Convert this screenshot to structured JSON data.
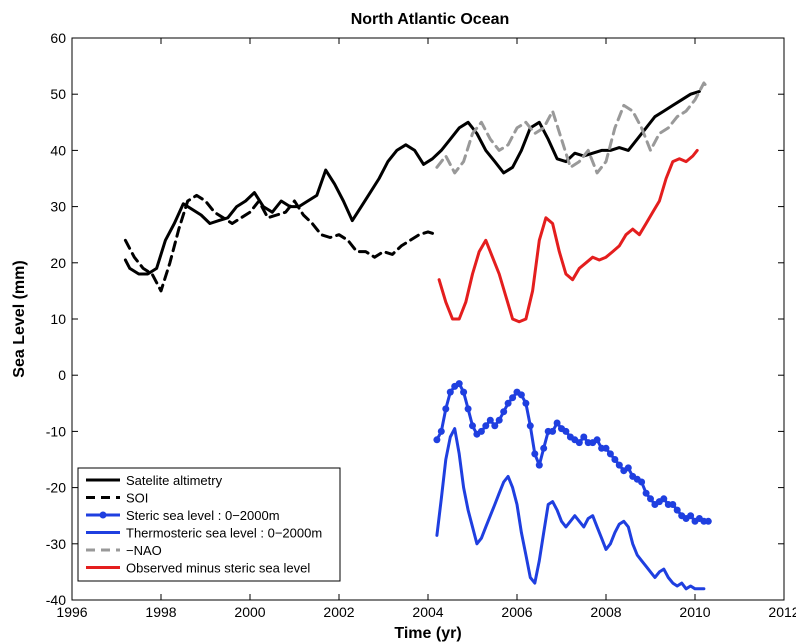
{
  "chart_data": {
    "type": "line",
    "title": "North Atlantic Ocean",
    "xlabel": "Time (yr)",
    "ylabel": "Sea Level (mm)",
    "xlim": [
      1996,
      2012
    ],
    "ylim": [
      -40,
      60
    ],
    "xticks": [
      1996,
      1998,
      2000,
      2002,
      2004,
      2006,
      2008,
      2010,
      2012
    ],
    "yticks": [
      -40,
      -30,
      -20,
      -10,
      0,
      10,
      20,
      30,
      40,
      50,
      60
    ],
    "grid": false,
    "legend_position": "bottom-left",
    "series": [
      {
        "name": "Satelite altimetry",
        "color": "#000000",
        "dash": "solid",
        "marker": "none",
        "x": [
          1997.2,
          1997.3,
          1997.5,
          1997.7,
          1997.9,
          1998.1,
          1998.3,
          1998.5,
          1998.7,
          1998.9,
          1999.1,
          1999.3,
          1999.5,
          1999.7,
          1999.9,
          2000.1,
          2000.3,
          2000.5,
          2000.7,
          2000.9,
          2001.1,
          2001.3,
          2001.5,
          2001.7,
          2001.9,
          2002.1,
          2002.3,
          2002.5,
          2002.7,
          2002.9,
          2003.1,
          2003.3,
          2003.5,
          2003.7,
          2003.9,
          2004.1,
          2004.3,
          2004.5,
          2004.7,
          2004.9,
          2005.1,
          2005.3,
          2005.5,
          2005.7,
          2005.9,
          2006.1,
          2006.3,
          2006.5,
          2006.7,
          2006.9,
          2007.1,
          2007.3,
          2007.5,
          2007.7,
          2007.9,
          2008.1,
          2008.3,
          2008.5,
          2008.7,
          2008.9,
          2009.1,
          2009.3,
          2009.5,
          2009.7,
          2009.9,
          2010.1
        ],
        "y": [
          20.5,
          19,
          18,
          18,
          19,
          24,
          27,
          30.5,
          29.5,
          28.5,
          27,
          27.5,
          28,
          30,
          31,
          32.5,
          30,
          29,
          31,
          30,
          30,
          31,
          32,
          36.5,
          34,
          31,
          27.5,
          30,
          32.5,
          35,
          38,
          40,
          41,
          40,
          37.5,
          38.5,
          40,
          42,
          44,
          45,
          43,
          40,
          38,
          36,
          37,
          40,
          44,
          45,
          42,
          38.5,
          38,
          39.5,
          39,
          39.5,
          40,
          40,
          40.5,
          40,
          42,
          44,
          46,
          47,
          48,
          49,
          50,
          50.5
        ]
      },
      {
        "name": "SOI",
        "color": "#000000",
        "dash": "dashed",
        "marker": "none",
        "x": [
          1997.2,
          1997.4,
          1997.6,
          1997.8,
          1998.0,
          1998.2,
          1998.4,
          1998.6,
          1998.8,
          1999.0,
          1999.2,
          1999.4,
          1999.6,
          1999.8,
          2000.0,
          2000.2,
          2000.4,
          2000.6,
          2000.8,
          2001.0,
          2001.2,
          2001.4,
          2001.6,
          2001.8,
          2002.0,
          2002.2,
          2002.4,
          2002.6,
          2002.8,
          2003.0,
          2003.2,
          2003.4,
          2003.6,
          2003.8,
          2004.0,
          2004.2
        ],
        "y": [
          24,
          21,
          19,
          18,
          15,
          20,
          26,
          31,
          32,
          31,
          29,
          28,
          27,
          28,
          29,
          31,
          28,
          28.5,
          29,
          31,
          28.5,
          27,
          25,
          24.5,
          25,
          24,
          22,
          22,
          21,
          22,
          21.5,
          23,
          24,
          25,
          25.5,
          25
        ]
      },
      {
        "name": "−NAO",
        "color": "#999999",
        "dash": "dashed",
        "marker": "none",
        "x": [
          2004.2,
          2004.4,
          2004.6,
          2004.8,
          2005.0,
          2005.2,
          2005.4,
          2005.6,
          2005.8,
          2006.0,
          2006.2,
          2006.4,
          2006.6,
          2006.8,
          2007.0,
          2007.2,
          2007.4,
          2007.6,
          2007.8,
          2008.0,
          2008.2,
          2008.4,
          2008.6,
          2008.8,
          2009.0,
          2009.2,
          2009.4,
          2009.6,
          2009.8,
          2010.0,
          2010.2,
          2010.3
        ],
        "y": [
          37,
          39,
          36,
          38,
          43,
          45,
          42,
          40,
          41,
          44,
          45,
          43,
          44,
          47,
          42,
          37,
          38,
          40,
          36,
          38,
          44,
          48,
          47,
          44,
          40,
          43,
          44,
          46,
          47,
          49,
          52,
          51
        ]
      },
      {
        "name": "Observed minus steric sea level",
        "color": "#e41e1e",
        "dash": "solid",
        "marker": "none",
        "x": [
          2004.25,
          2004.4,
          2004.55,
          2004.7,
          2004.85,
          2005.0,
          2005.15,
          2005.3,
          2005.45,
          2005.6,
          2005.75,
          2005.9,
          2006.05,
          2006.2,
          2006.35,
          2006.5,
          2006.65,
          2006.8,
          2006.95,
          2007.1,
          2007.25,
          2007.4,
          2007.55,
          2007.7,
          2007.85,
          2008.0,
          2008.15,
          2008.3,
          2008.45,
          2008.6,
          2008.75,
          2008.9,
          2009.05,
          2009.2,
          2009.35,
          2009.5,
          2009.65,
          2009.8,
          2009.95,
          2010.05
        ],
        "y": [
          17,
          13,
          10,
          10,
          13,
          18,
          22,
          24,
          21,
          18,
          14,
          10,
          9.5,
          10,
          15,
          24,
          28,
          27,
          22,
          18,
          17,
          19,
          20,
          21,
          20.5,
          21,
          22,
          23,
          25,
          26,
          25,
          27,
          29,
          31,
          35,
          38,
          38.5,
          38,
          39,
          40
        ]
      },
      {
        "name": "Steric sea level : 0−2000m",
        "color": "#1f3fe0",
        "dash": "solid",
        "marker": "circle",
        "x": [
          2004.2,
          2004.3,
          2004.4,
          2004.5,
          2004.6,
          2004.7,
          2004.8,
          2004.9,
          2005.0,
          2005.1,
          2005.2,
          2005.3,
          2005.4,
          2005.5,
          2005.6,
          2005.7,
          2005.8,
          2005.9,
          2006.0,
          2006.1,
          2006.2,
          2006.3,
          2006.4,
          2006.5,
          2006.6,
          2006.7,
          2006.8,
          2006.9,
          2007.0,
          2007.1,
          2007.2,
          2007.3,
          2007.4,
          2007.5,
          2007.6,
          2007.7,
          2007.8,
          2007.9,
          2008.0,
          2008.1,
          2008.2,
          2008.3,
          2008.4,
          2008.5,
          2008.6,
          2008.7,
          2008.8,
          2008.9,
          2009.0,
          2009.1,
          2009.2,
          2009.3,
          2009.4,
          2009.5,
          2009.6,
          2009.7,
          2009.8,
          2009.9,
          2010.0,
          2010.1,
          2010.2,
          2010.3
        ],
        "y": [
          -11.5,
          -10,
          -6,
          -3,
          -2,
          -1.5,
          -3,
          -6,
          -9,
          -10.5,
          -10,
          -9,
          -8,
          -9,
          -8,
          -6.5,
          -5,
          -4,
          -3,
          -3.5,
          -5,
          -9,
          -14,
          -16,
          -13,
          -10,
          -10,
          -8.5,
          -9.5,
          -10,
          -11,
          -11.5,
          -12,
          -11,
          -12,
          -12,
          -11.5,
          -13,
          -13,
          -14,
          -15,
          -16,
          -17,
          -16.5,
          -18,
          -18.5,
          -19,
          -21,
          -22,
          -23,
          -22.5,
          -22,
          -23,
          -23,
          -24,
          -25,
          -25.5,
          -25,
          -26,
          -25.5,
          -26,
          -26
        ]
      },
      {
        "name": "Thermosteric sea level : 0−2000m",
        "color": "#1f3fe0",
        "dash": "solid",
        "marker": "none",
        "x": [
          2004.2,
          2004.3,
          2004.4,
          2004.5,
          2004.6,
          2004.7,
          2004.8,
          2004.9,
          2005.0,
          2005.1,
          2005.2,
          2005.3,
          2005.4,
          2005.5,
          2005.6,
          2005.7,
          2005.8,
          2005.9,
          2006.0,
          2006.1,
          2006.2,
          2006.3,
          2006.4,
          2006.5,
          2006.6,
          2006.7,
          2006.8,
          2006.9,
          2007.0,
          2007.1,
          2007.2,
          2007.3,
          2007.4,
          2007.5,
          2007.6,
          2007.7,
          2007.8,
          2007.9,
          2008.0,
          2008.1,
          2008.2,
          2008.3,
          2008.4,
          2008.5,
          2008.6,
          2008.7,
          2008.8,
          2008.9,
          2009.0,
          2009.1,
          2009.2,
          2009.3,
          2009.4,
          2009.5,
          2009.6,
          2009.7,
          2009.8,
          2009.9,
          2010.0,
          2010.1,
          2010.2
        ],
        "y": [
          -28.5,
          -22,
          -15,
          -11,
          -9.5,
          -14,
          -20,
          -24,
          -27,
          -30,
          -29,
          -27,
          -25,
          -23,
          -21,
          -19,
          -18,
          -20,
          -23,
          -28,
          -32,
          -36,
          -37,
          -33,
          -28,
          -23,
          -22.5,
          -24,
          -26,
          -27,
          -26,
          -25,
          -26,
          -27,
          -25.5,
          -25,
          -27,
          -29,
          -31,
          -30,
          -28,
          -26.5,
          -26,
          -27,
          -30,
          -32,
          -33,
          -34,
          -35,
          -36,
          -35,
          -34.5,
          -36,
          -37,
          -37.5,
          -37,
          -38,
          -37.5,
          -38,
          -38,
          -38
        ]
      }
    ]
  }
}
